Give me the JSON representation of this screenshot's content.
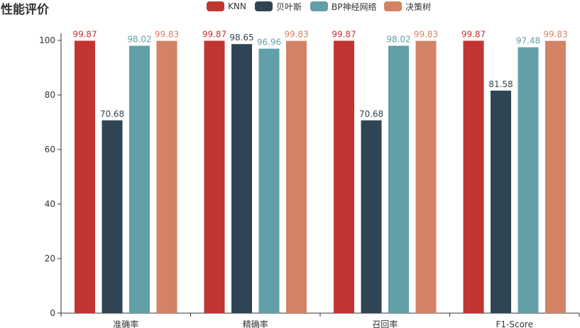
{
  "title": "性能评价",
  "chart_data": {
    "type": "bar",
    "title": "性能评价",
    "categories": [
      "准确率",
      "精确率",
      "召回率",
      "F1-Score"
    ],
    "series": [
      {
        "name": "KNN",
        "color": "#c23531",
        "values": [
          99.87,
          99.87,
          99.87,
          99.87
        ]
      },
      {
        "name": "贝叶斯",
        "color": "#2f4554",
        "values": [
          70.68,
          98.65,
          70.68,
          81.58
        ]
      },
      {
        "name": "BP神经网络",
        "color": "#61a0a8",
        "values": [
          98.02,
          96.96,
          98.02,
          97.48
        ]
      },
      {
        "name": "决策树",
        "color": "#d48265",
        "values": [
          99.83,
          99.83,
          99.83,
          99.83
        ]
      }
    ],
    "ylim": [
      0,
      100
    ],
    "yticks": [
      0,
      20,
      40,
      60,
      80,
      100
    ],
    "xlabel": "",
    "ylabel": ""
  }
}
